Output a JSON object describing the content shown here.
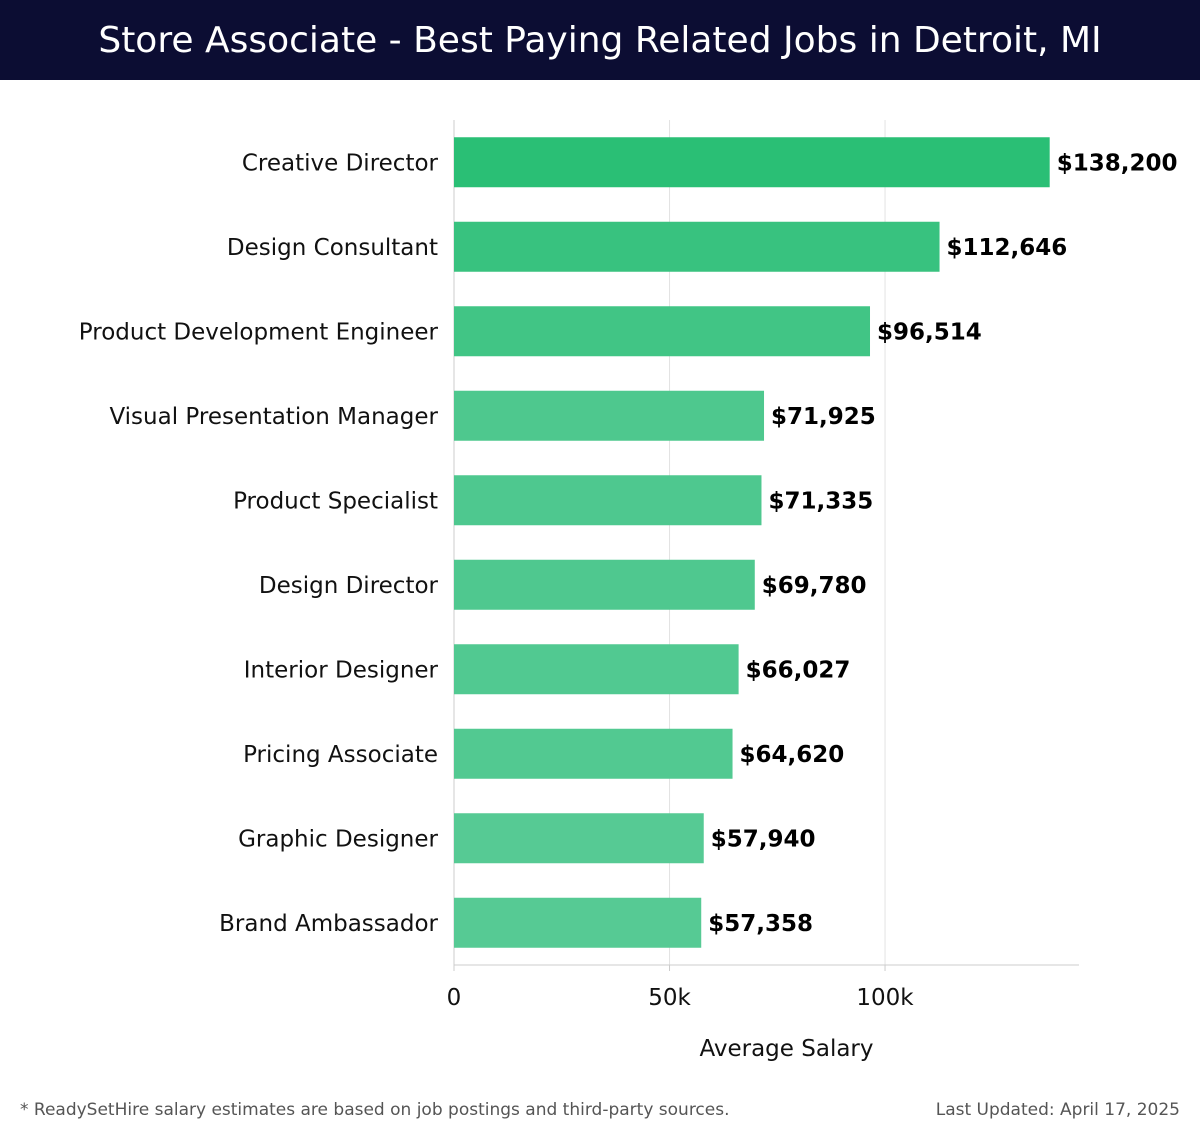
{
  "header": {
    "title": "Store Associate - Best Paying Related Jobs in Detroit, MI"
  },
  "chart_data": {
    "type": "bar",
    "orientation": "horizontal",
    "title": "Store Associate - Best Paying Related Jobs in Detroit, MI",
    "xlabel": "Average Salary",
    "ylabel": "",
    "xlim": [
      0,
      145000
    ],
    "x_ticks": [
      0,
      50000,
      100000
    ],
    "x_tick_labels": [
      "0",
      "50k",
      "100k"
    ],
    "grid": true,
    "legend": "none",
    "categories": [
      "Creative Director",
      "Design Consultant",
      "Product Development Engineer",
      "Visual Presentation Manager",
      "Product Specialist",
      "Design Director",
      "Interior Designer",
      "Pricing Associate",
      "Graphic Designer",
      "Brand Ambassador"
    ],
    "values": [
      138200,
      112646,
      96514,
      71925,
      71335,
      69780,
      66027,
      64620,
      57940,
      57358
    ],
    "value_labels": [
      "$138,200",
      "$112,646",
      "$96,514",
      "$71,925",
      "$71,335",
      "$69,780",
      "$66,027",
      "$64,620",
      "$57,940",
      "$57,358"
    ],
    "bar_color_max": "#2abf75",
    "bar_color_min": "#56ca94"
  },
  "footer": {
    "note": "* ReadySetHire salary estimates are based on job postings and third-party sources.",
    "updated": "Last Updated: April 17, 2025"
  }
}
